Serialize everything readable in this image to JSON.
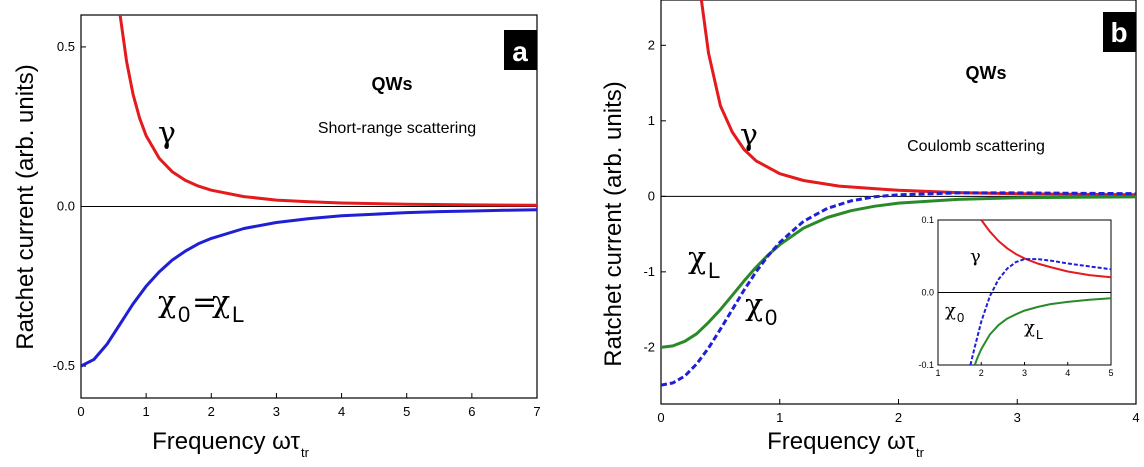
{
  "chart_data": [
    {
      "panel": "a",
      "type": "line",
      "xlabel": "Frequency ωτ",
      "xlabel_sub": "tr",
      "ylabel": "Ratchet current (arb. units)",
      "xlim": [
        0,
        7
      ],
      "ylim": [
        -0.6,
        0.6
      ],
      "xticks": [
        "0",
        "1",
        "2",
        "3",
        "4",
        "5",
        "6",
        "7"
      ],
      "yticks": [
        "0.5",
        "0.0",
        "-0.5"
      ],
      "heading": "QWs",
      "subheading": "Short-range scattering",
      "series": [
        {
          "name": "γ",
          "color": "#e41a1c",
          "style": "solid",
          "x": [
            0.6,
            0.7,
            0.8,
            0.9,
            1.0,
            1.2,
            1.4,
            1.6,
            1.8,
            2.0,
            2.5,
            3.0,
            3.5,
            4.0,
            5.0,
            6.0,
            7.0
          ],
          "y": [
            0.6,
            0.454,
            0.351,
            0.277,
            0.222,
            0.151,
            0.109,
            0.082,
            0.064,
            0.051,
            0.031,
            0.02,
            0.015,
            0.011,
            0.007,
            0.005,
            0.004
          ]
        },
        {
          "name": "χ₀=χL",
          "color": "#1f1fd6",
          "style": "solid",
          "x": [
            0.0,
            0.2,
            0.4,
            0.6,
            0.8,
            1.0,
            1.2,
            1.4,
            1.6,
            1.8,
            2.0,
            2.5,
            3.0,
            3.5,
            4.0,
            4.5,
            5.0,
            5.5,
            6.0,
            6.5,
            7.0
          ],
          "y": [
            -0.5,
            -0.479,
            -0.431,
            -0.368,
            -0.305,
            -0.25,
            -0.205,
            -0.168,
            -0.14,
            -0.117,
            -0.1,
            -0.069,
            -0.05,
            -0.038,
            -0.029,
            -0.024,
            -0.019,
            -0.016,
            -0.014,
            -0.012,
            -0.01
          ]
        }
      ]
    },
    {
      "panel": "b",
      "type": "line",
      "xlabel": "Frequency ωτ",
      "xlabel_sub": "tr",
      "ylabel": "Ratchet current (arb. units)",
      "xlim": [
        0,
        4
      ],
      "ylim": [
        -2.75,
        2.6
      ],
      "xticks": [
        "0",
        "1",
        "2",
        "3",
        "4"
      ],
      "yticks": [
        "2",
        "1",
        "0",
        "-1",
        "-2"
      ],
      "heading": "QWs",
      "subheading": "Coulomb scattering",
      "series": [
        {
          "name": "γ",
          "color": "#e41a1c",
          "style": "solid",
          "x": [
            0.34,
            0.4,
            0.5,
            0.6,
            0.7,
            0.8,
            1.0,
            1.2,
            1.5,
            2.0,
            2.5,
            3.0,
            3.5,
            4.0
          ],
          "y": [
            2.6,
            1.9,
            1.2,
            0.85,
            0.62,
            0.47,
            0.3,
            0.21,
            0.135,
            0.08,
            0.05,
            0.035,
            0.025,
            0.02
          ]
        },
        {
          "name": "χL",
          "color": "#2a8a2a",
          "style": "solid",
          "x": [
            0.0,
            0.1,
            0.2,
            0.3,
            0.4,
            0.5,
            0.6,
            0.7,
            0.8,
            0.9,
            1.0,
            1.2,
            1.4,
            1.6,
            1.8,
            2.0,
            2.5,
            3.0,
            3.5,
            4.0
          ],
          "y": [
            -2.0,
            -1.98,
            -1.92,
            -1.82,
            -1.67,
            -1.5,
            -1.31,
            -1.12,
            -0.94,
            -0.78,
            -0.64,
            -0.42,
            -0.28,
            -0.19,
            -0.13,
            -0.09,
            -0.04,
            -0.02,
            -0.012,
            -0.008
          ]
        },
        {
          "name": "χ₀",
          "color": "#1f1fd6",
          "style": "dashed",
          "x": [
            0.0,
            0.1,
            0.2,
            0.3,
            0.4,
            0.5,
            0.6,
            0.7,
            0.8,
            0.9,
            1.0,
            1.2,
            1.4,
            1.6,
            1.8,
            2.0,
            2.5,
            3.0,
            3.5,
            4.0
          ],
          "y": [
            -2.5,
            -2.47,
            -2.38,
            -2.22,
            -2.01,
            -1.76,
            -1.5,
            -1.24,
            -1.0,
            -0.79,
            -0.61,
            -0.33,
            -0.16,
            -0.06,
            -0.005,
            0.02,
            0.045,
            0.045,
            0.04,
            0.035
          ]
        }
      ],
      "inset": {
        "xlim": [
          1,
          5
        ],
        "ylim": [
          -0.1,
          0.1
        ],
        "xticks": [
          "1",
          "2",
          "3",
          "4",
          "5"
        ],
        "yticks": [
          "0.1",
          "0.0",
          "-0.1"
        ],
        "series": [
          {
            "name": "γ",
            "color": "#e41a1c",
            "style": "solid",
            "x": [
              2.0,
              2.2,
              2.4,
              2.6,
              2.8,
              3.0,
              3.3,
              3.6,
              4.0,
              4.5,
              5.0
            ],
            "y": [
              0.1,
              0.084,
              0.071,
              0.061,
              0.053,
              0.047,
              0.04,
              0.035,
              0.029,
              0.024,
              0.021
            ]
          },
          {
            "name": "χL",
            "color": "#2a8a2a",
            "style": "solid",
            "x": [
              1.85,
              1.9,
              2.0,
              2.2,
              2.4,
              2.6,
              2.8,
              3.0,
              3.3,
              3.6,
              4.0,
              4.5,
              5.0
            ],
            "y": [
              -0.1,
              -0.092,
              -0.078,
              -0.058,
              -0.045,
              -0.036,
              -0.03,
              -0.025,
              -0.02,
              -0.016,
              -0.013,
              -0.01,
              -0.008
            ]
          },
          {
            "name": "χ₀",
            "color": "#1f1fd6",
            "style": "dashed",
            "x": [
              1.75,
              1.85,
              2.0,
              2.2,
              2.4,
              2.6,
              2.8,
              3.0,
              3.3,
              3.6,
              4.0,
              4.5,
              5.0
            ],
            "y": [
              -0.1,
              -0.075,
              -0.04,
              -0.005,
              0.018,
              0.033,
              0.042,
              0.046,
              0.046,
              0.044,
              0.04,
              0.036,
              0.032
            ]
          }
        ]
      }
    }
  ],
  "labels": {
    "a_badge": "a",
    "b_badge": "b",
    "gamma": "γ",
    "chi": "χ",
    "sub_0": "0",
    "sub_L": "L",
    "eq": "=",
    "inset_gamma": "γ",
    "inset_chi0": "χ",
    "inset_chiL": "χ"
  }
}
